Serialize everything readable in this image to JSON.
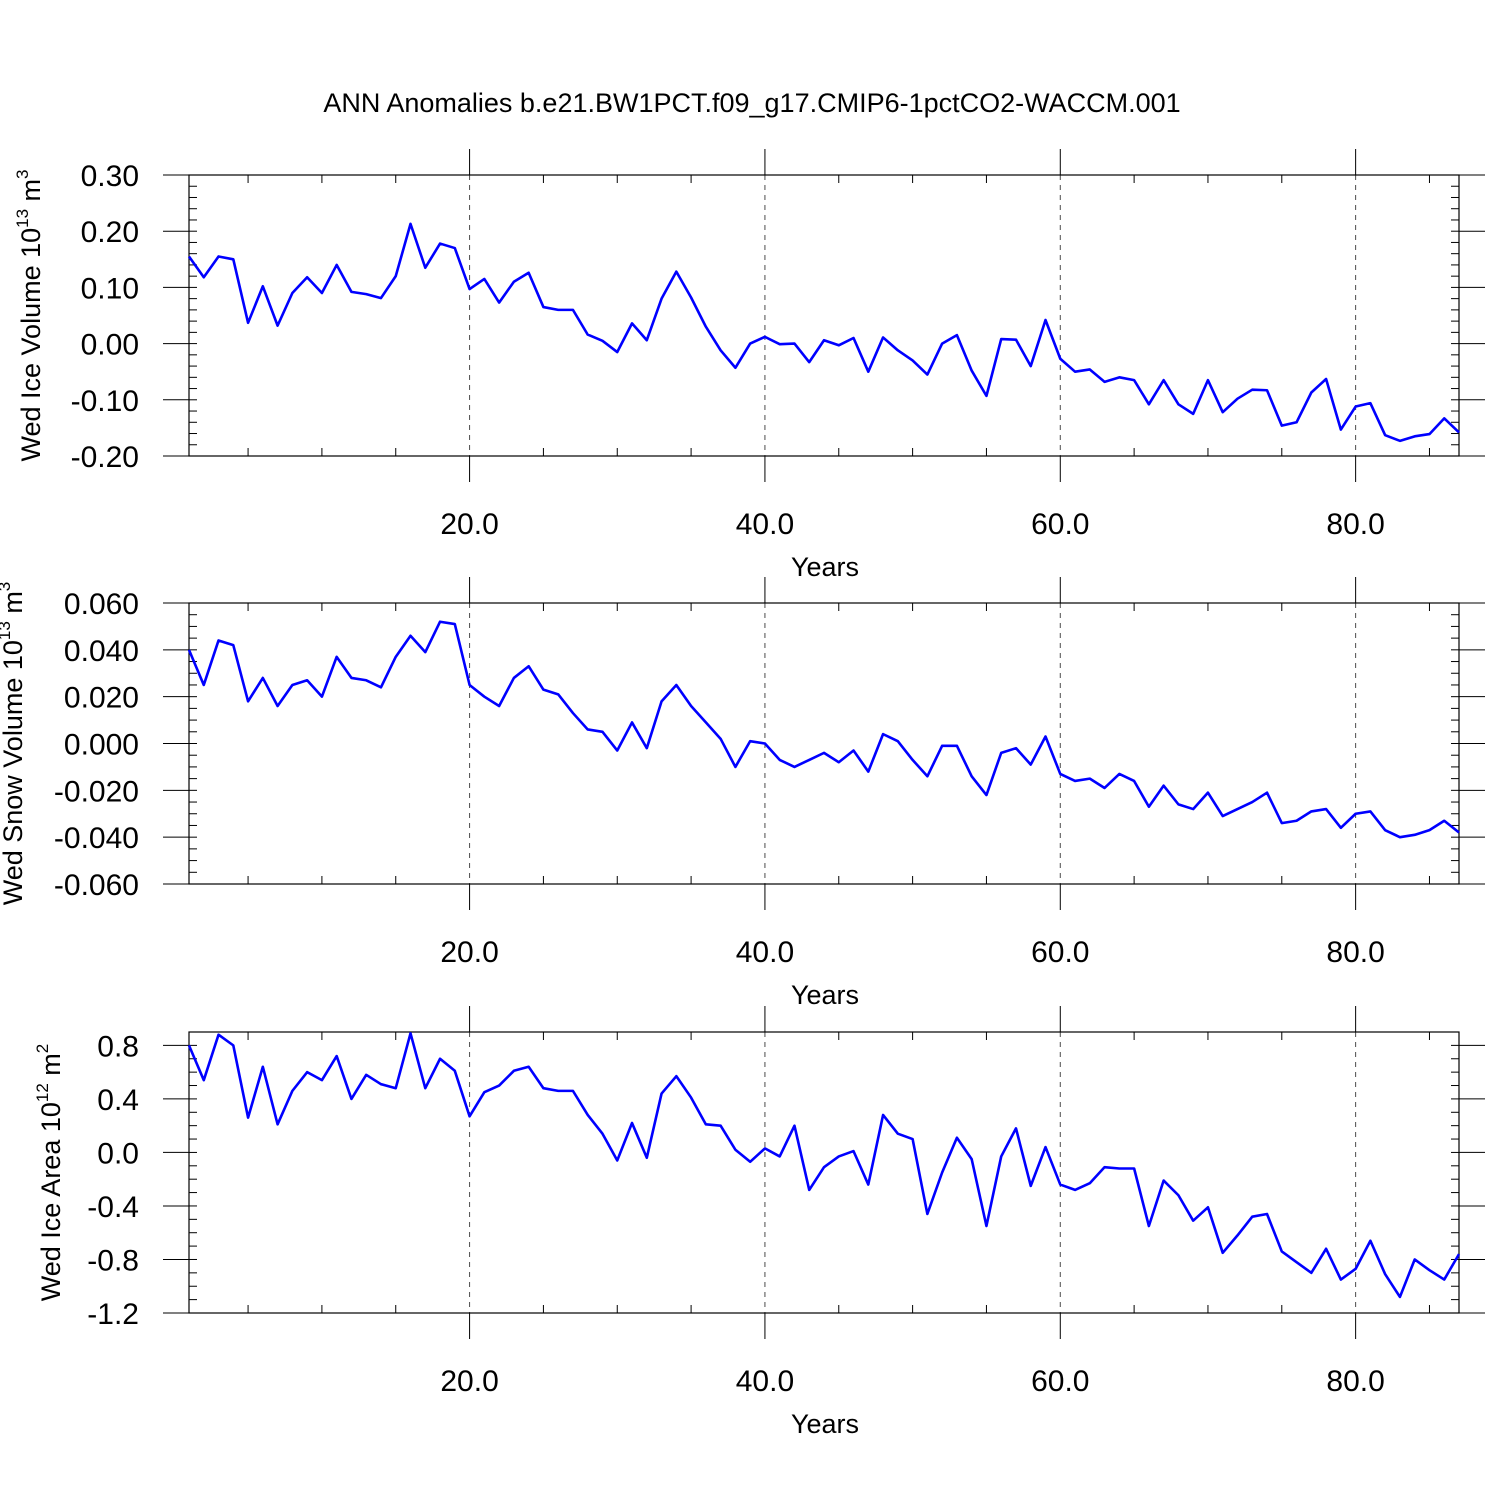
{
  "title": "ANN Anomalies b.e21.BW1PCT.f09_g17.CMIP6-1pctCO2-WACCM.001",
  "style": {
    "line_color": "#0000ff",
    "axis_color": "#000000",
    "grid_color": "#000000"
  },
  "chart_data": [
    {
      "type": "line",
      "xlabel": "Years",
      "ylabel": {
        "text": "Wed Ice Volume 10",
        "exp": "13",
        "unit": " m",
        "unit_exp": "3"
      },
      "xlim": [
        1,
        87
      ],
      "ylim": [
        -0.2,
        0.3
      ],
      "xticks": [
        20,
        40,
        60,
        80
      ],
      "xtick_labels": [
        "20.0",
        "40.0",
        "60.0",
        "80.0"
      ],
      "xminor": 5,
      "yticks": [
        -0.2,
        -0.1,
        0.0,
        0.1,
        0.2,
        0.3
      ],
      "ytick_labels": [
        "-0.20",
        "-0.10",
        "0.00",
        "0.10",
        "0.20",
        "0.30"
      ],
      "yminor": 0.02,
      "grid": "vertical dashed at major x ticks",
      "x_start": 1,
      "values": [
        0.155,
        0.118,
        0.155,
        0.15,
        0.037,
        0.102,
        0.032,
        0.09,
        0.118,
        0.09,
        0.14,
        0.092,
        0.088,
        0.081,
        0.12,
        0.213,
        0.135,
        0.178,
        0.17,
        0.097,
        0.115,
        0.073,
        0.11,
        0.126,
        0.065,
        0.06,
        0.06,
        0.016,
        0.005,
        -0.015,
        0.036,
        0.006,
        0.08,
        0.128,
        0.082,
        0.03,
        -0.012,
        -0.043,
        0.0,
        0.012,
        -0.001,
        0.0,
        -0.033,
        0.006,
        -0.003,
        0.01,
        -0.05,
        0.011,
        -0.012,
        -0.03,
        -0.055,
        0.0,
        0.015,
        -0.048,
        -0.093,
        0.008,
        0.007,
        -0.04,
        0.042,
        -0.027,
        -0.05,
        -0.046,
        -0.068,
        -0.06,
        -0.065,
        -0.108,
        -0.065,
        -0.108,
        -0.125,
        -0.065,
        -0.122,
        -0.098,
        -0.082,
        -0.083,
        -0.146,
        -0.14,
        -0.087,
        -0.063,
        -0.153,
        -0.112,
        -0.106,
        -0.163,
        -0.173,
        -0.165,
        -0.161,
        -0.133,
        -0.158
      ]
    },
    {
      "type": "line",
      "xlabel": "Years",
      "ylabel": {
        "text": "Wed Snow Volume 10",
        "exp": "13",
        "unit": " m",
        "unit_exp": "3"
      },
      "xlim": [
        1,
        87
      ],
      "ylim": [
        -0.06,
        0.06
      ],
      "xticks": [
        20,
        40,
        60,
        80
      ],
      "xtick_labels": [
        "20.0",
        "40.0",
        "60.0",
        "80.0"
      ],
      "xminor": 5,
      "yticks": [
        -0.06,
        -0.04,
        -0.02,
        0.0,
        0.02,
        0.04,
        0.06
      ],
      "ytick_labels": [
        "-0.060",
        "-0.040",
        "-0.020",
        "0.000",
        "0.020",
        "0.040",
        "0.060"
      ],
      "yminor": 0.005,
      "grid": "vertical dashed at major x ticks",
      "x_start": 1,
      "values": [
        0.04,
        0.025,
        0.044,
        0.042,
        0.018,
        0.028,
        0.016,
        0.025,
        0.027,
        0.02,
        0.037,
        0.028,
        0.027,
        0.024,
        0.037,
        0.046,
        0.039,
        0.052,
        0.051,
        0.025,
        0.02,
        0.016,
        0.028,
        0.033,
        0.023,
        0.021,
        0.013,
        0.006,
        0.005,
        -0.003,
        0.009,
        -0.002,
        0.018,
        0.025,
        0.016,
        0.009,
        0.002,
        -0.01,
        0.001,
        0.0,
        -0.007,
        -0.01,
        -0.007,
        -0.004,
        -0.008,
        -0.003,
        -0.012,
        0.004,
        0.001,
        -0.007,
        -0.014,
        -0.001,
        -0.001,
        -0.014,
        -0.022,
        -0.004,
        -0.002,
        -0.009,
        0.003,
        -0.013,
        -0.016,
        -0.015,
        -0.019,
        -0.013,
        -0.016,
        -0.027,
        -0.018,
        -0.026,
        -0.028,
        -0.021,
        -0.031,
        -0.028,
        -0.025,
        -0.021,
        -0.034,
        -0.033,
        -0.029,
        -0.028,
        -0.036,
        -0.03,
        -0.029,
        -0.037,
        -0.04,
        -0.039,
        -0.037,
        -0.033,
        -0.038
      ]
    },
    {
      "type": "line",
      "xlabel": "Years",
      "ylabel": {
        "text": "Wed Ice Area 10",
        "exp": "12",
        "unit": " m",
        "unit_exp": "2"
      },
      "xlim": [
        1,
        87
      ],
      "ylim": [
        -1.2,
        0.9
      ],
      "xticks": [
        20,
        40,
        60,
        80
      ],
      "xtick_labels": [
        "20.0",
        "40.0",
        "60.0",
        "80.0"
      ],
      "xminor": 5,
      "yticks": [
        -1.2,
        -0.8,
        -0.4,
        0.0,
        0.4,
        0.8
      ],
      "ytick_labels": [
        "-1.2",
        "-0.8",
        "-0.4",
        "0.0",
        "0.4",
        "0.8"
      ],
      "yminor": 0.1,
      "grid": "vertical dashed at major x ticks",
      "x_start": 1,
      "values": [
        0.8,
        0.54,
        0.88,
        0.8,
        0.26,
        0.64,
        0.21,
        0.46,
        0.6,
        0.54,
        0.72,
        0.4,
        0.58,
        0.51,
        0.48,
        0.89,
        0.48,
        0.7,
        0.61,
        0.27,
        0.45,
        0.5,
        0.61,
        0.64,
        0.48,
        0.46,
        0.46,
        0.28,
        0.14,
        -0.06,
        0.22,
        -0.04,
        0.44,
        0.57,
        0.41,
        0.21,
        0.2,
        0.02,
        -0.07,
        0.03,
        -0.03,
        0.2,
        -0.28,
        -0.11,
        -0.03,
        0.01,
        -0.24,
        0.28,
        0.14,
        0.1,
        -0.46,
        -0.15,
        0.11,
        -0.05,
        -0.55,
        -0.03,
        0.18,
        -0.25,
        0.04,
        -0.24,
        -0.28,
        -0.23,
        -0.11,
        -0.12,
        -0.12,
        -0.55,
        -0.21,
        -0.32,
        -0.51,
        -0.41,
        -0.75,
        -0.62,
        -0.48,
        -0.46,
        -0.74,
        -0.82,
        -0.9,
        -0.72,
        -0.95,
        -0.87,
        -0.66,
        -0.91,
        -1.08,
        -0.8,
        -0.88,
        -0.95,
        -0.76
      ]
    }
  ]
}
